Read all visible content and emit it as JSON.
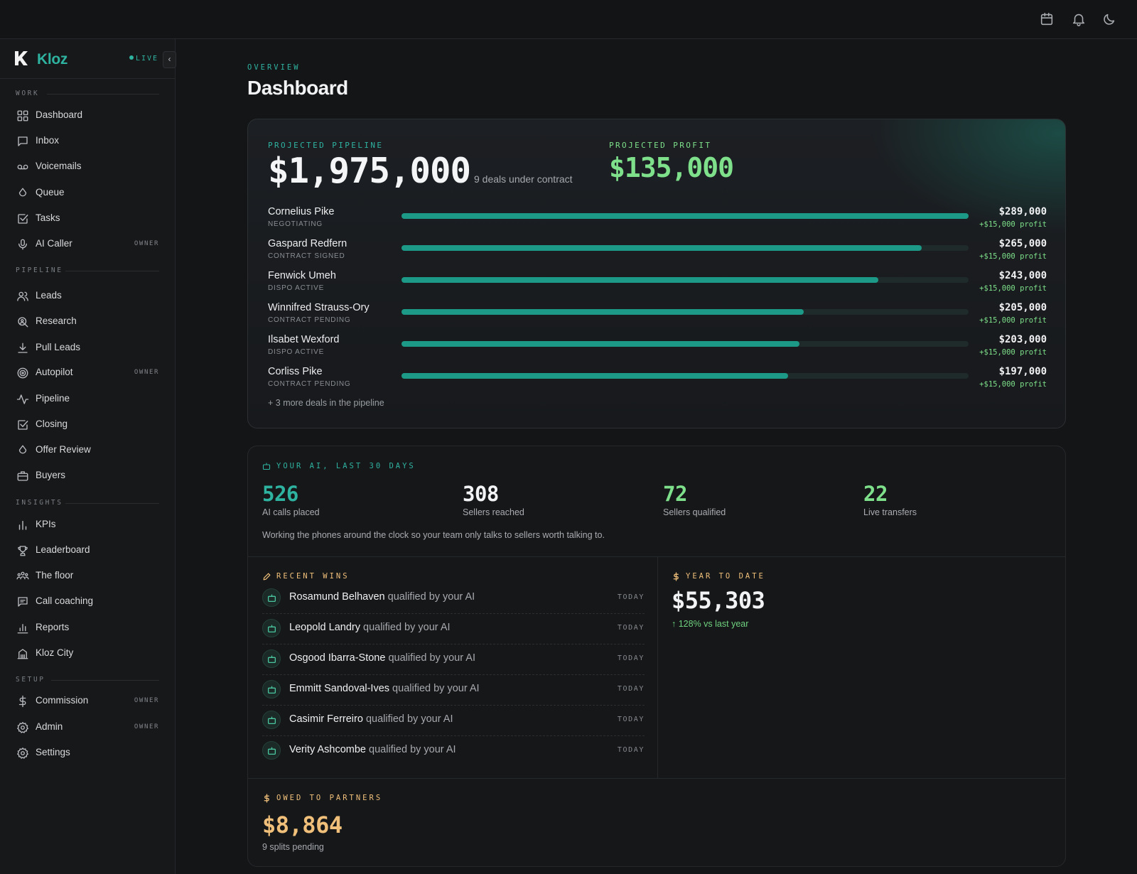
{
  "sidebar": {
    "brand": {
      "name": "Kloz",
      "status": "LIVE"
    },
    "collapse_icon": "chevron-left-icon",
    "sections": [
      {
        "title": "WORK",
        "items": [
          {
            "label": "Dashboard",
            "icon": "grid-icon",
            "badge": ""
          },
          {
            "label": "Inbox",
            "icon": "message-square-icon",
            "badge": ""
          },
          {
            "label": "Voicemails",
            "icon": "voicemail-icon",
            "badge": ""
          },
          {
            "label": "Queue",
            "icon": "drop-icon",
            "badge": ""
          },
          {
            "label": "Tasks",
            "icon": "checkbox-icon",
            "badge": ""
          },
          {
            "label": "AI Caller",
            "icon": "microphone-icon",
            "badge": "OWNER"
          }
        ]
      },
      {
        "title": "PIPELINE",
        "items": [
          {
            "label": "Leads",
            "icon": "users-icon",
            "badge": ""
          },
          {
            "label": "Research",
            "icon": "search-user-icon",
            "badge": ""
          },
          {
            "label": "Pull Leads",
            "icon": "download-icon",
            "badge": ""
          },
          {
            "label": "Autopilot",
            "icon": "target-icon",
            "badge": "OWNER"
          },
          {
            "label": "Pipeline",
            "icon": "activity-icon",
            "badge": ""
          },
          {
            "label": "Closing",
            "icon": "checkbox-icon",
            "badge": ""
          },
          {
            "label": "Offer Review",
            "icon": "drop-icon",
            "badge": ""
          },
          {
            "label": "Buyers",
            "icon": "briefcase-icon",
            "badge": ""
          }
        ]
      },
      {
        "title": "INSIGHTS",
        "items": [
          {
            "label": "KPIs",
            "icon": "bar-chart-icon",
            "badge": ""
          },
          {
            "label": "Leaderboard",
            "icon": "trophy-icon",
            "badge": ""
          },
          {
            "label": "The floor",
            "icon": "team-icon",
            "badge": ""
          },
          {
            "label": "Call coaching",
            "icon": "message-lines-icon",
            "badge": ""
          },
          {
            "label": "Reports",
            "icon": "bar-chart-2-icon",
            "badge": ""
          },
          {
            "label": "Kloz City",
            "icon": "building-icon",
            "badge": ""
          }
        ]
      },
      {
        "title": "SETUP",
        "items": [
          {
            "label": "Commission",
            "icon": "dollar-icon",
            "badge": "OWNER"
          },
          {
            "label": "Admin",
            "icon": "gear-icon",
            "badge": "OWNER"
          },
          {
            "label": "Settings",
            "icon": "gear-icon",
            "badge": ""
          }
        ]
      }
    ]
  },
  "topbar": {
    "icons": [
      "calendar-icon",
      "bell-icon",
      "moon-icon"
    ]
  },
  "header": {
    "eyebrow": "OVERVIEW",
    "title": "Dashboard"
  },
  "pipeline": {
    "label": "PROJECTED PIPELINE",
    "value": "$1,975,000",
    "subtitle": "9 deals under contract",
    "profit_label": "PROJECTED PROFIT",
    "profit_value": "$135,000",
    "deals": [
      {
        "name": "Cornelius Pike",
        "status": "NEGOTIATING",
        "amount": "$289,000",
        "profit": "+$15,000 profit",
        "progress": 1.0
      },
      {
        "name": "Gaspard Redfern",
        "status": "CONTRACT SIGNED",
        "amount": "$265,000",
        "profit": "+$15,000 profit",
        "progress": 0.917
      },
      {
        "name": "Fenwick Umeh",
        "status": "DISPO ACTIVE",
        "amount": "$243,000",
        "profit": "+$15,000 profit",
        "progress": 0.841
      },
      {
        "name": "Winnifred Strauss-Ory",
        "status": "CONTRACT PENDING",
        "amount": "$205,000",
        "profit": "+$15,000 profit",
        "progress": 0.709
      },
      {
        "name": "Ilsabet Wexford",
        "status": "DISPO ACTIVE",
        "amount": "$203,000",
        "profit": "+$15,000 profit",
        "progress": 0.702
      },
      {
        "name": "Corliss Pike",
        "status": "CONTRACT PENDING",
        "amount": "$197,000",
        "profit": "+$15,000 profit",
        "progress": 0.682
      }
    ],
    "more": "+ 3 more deals in the pipeline"
  },
  "ai": {
    "label": "YOUR AI, LAST 30 DAYS",
    "stats": [
      {
        "value": "526",
        "label": "AI calls placed",
        "color": "#2fb3a1"
      },
      {
        "value": "308",
        "label": "Sellers reached",
        "color": "#f2f3f4"
      },
      {
        "value": "72",
        "label": "Sellers qualified",
        "color": "#7ee08a"
      },
      {
        "value": "22",
        "label": "Live transfers",
        "color": "#7ee08a"
      }
    ],
    "note": "Working the phones around the clock so your team only talks to sellers worth talking to."
  },
  "recent_wins": {
    "label": "RECENT WINS",
    "items": [
      {
        "name": "Rosamund Belhaven",
        "action": " qualified by your AI",
        "when": "TODAY"
      },
      {
        "name": "Leopold Landry",
        "action": " qualified by your AI",
        "when": "TODAY"
      },
      {
        "name": "Osgood Ibarra-Stone",
        "action": " qualified by your AI",
        "when": "TODAY"
      },
      {
        "name": "Emmitt Sandoval-Ives",
        "action": " qualified by your AI",
        "when": "TODAY"
      },
      {
        "name": "Casimir Ferreiro",
        "action": " qualified by your AI",
        "when": "TODAY"
      },
      {
        "name": "Verity Ashcombe",
        "action": " qualified by your AI",
        "when": "TODAY"
      }
    ]
  },
  "ytd": {
    "label": "YEAR TO DATE",
    "value": "$55,303",
    "delta": "128% vs last year"
  },
  "owed": {
    "label": "OWED TO PARTNERS",
    "value": "$8,864",
    "subtitle": "9 splits pending"
  },
  "colors": {
    "accent": "#2fb3a1",
    "profit": "#7ee08a",
    "gold": "#f0c07a",
    "background": "#141517"
  }
}
